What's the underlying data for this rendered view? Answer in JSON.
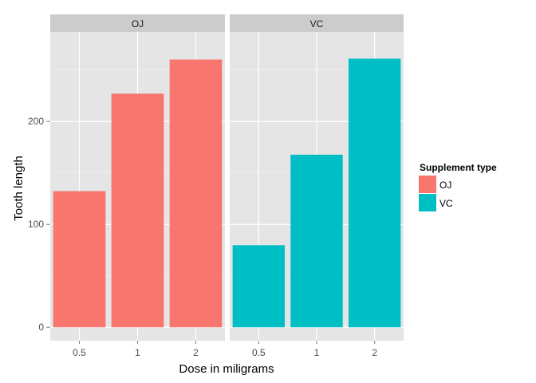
{
  "chart_data": {
    "type": "bar",
    "facets": [
      "OJ",
      "VC"
    ],
    "categories": [
      "0.5",
      "1",
      "2"
    ],
    "series": [
      {
        "name": "OJ",
        "facet": "OJ",
        "values": [
          132.3,
          227.0,
          260.2
        ]
      },
      {
        "name": "VC",
        "facet": "VC",
        "values": [
          79.8,
          167.7,
          261.0
        ]
      }
    ],
    "xlabel": "Dose in miligrams",
    "ylabel": "Tooth length",
    "ylim": [
      -13,
      287
    ],
    "yticks": [
      0,
      100,
      200
    ],
    "grid": true,
    "legend": {
      "title": "Supplement type",
      "position": "right",
      "entries": [
        "OJ",
        "VC"
      ]
    },
    "colors": {
      "OJ": "#F8766D",
      "VC": "#00BFC4",
      "panel": "#E5E5E5",
      "strip": "#CCCCCC",
      "grid_major": "#FFFFFF",
      "grid_minor": "#F2F2F2"
    }
  }
}
